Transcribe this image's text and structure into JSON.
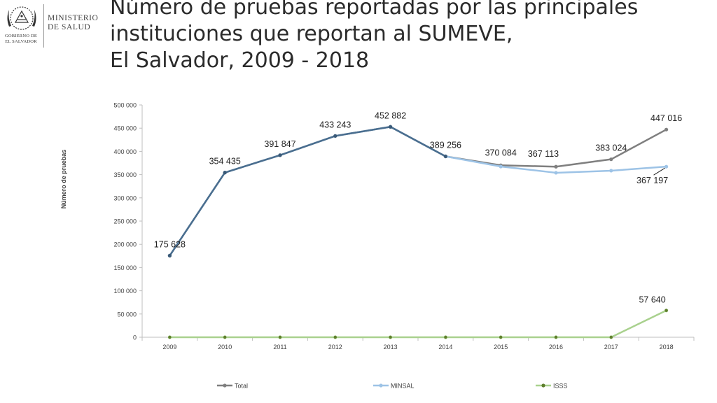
{
  "logo": {
    "ministry_line1": "MINISTERIO",
    "ministry_line2": "DE SALUD",
    "government_line1": "GOBIERNO DE",
    "government_line2": "EL SALVADOR",
    "seal_icon": "el-salvador-coat-of-arms-icon"
  },
  "title": {
    "line1": "Número de pruebas reportadas por las principales",
    "line2": "instituciones que reportan al SUMEVE,",
    "line3": "El Salvador, 2009 - 2018"
  },
  "chart_data": {
    "type": "line",
    "title": "",
    "xlabel": "",
    "ylabel": "Número de pruebas",
    "ylim": [
      0,
      500000
    ],
    "ytick_step": 50000,
    "yticks": [
      "0",
      "50 000",
      "100 000",
      "150 000",
      "200 000",
      "250 000",
      "300 000",
      "350 000",
      "400 000",
      "450 000",
      "500 000"
    ],
    "grid": false,
    "legend_position": "bottom",
    "categories": [
      "2009",
      "2010",
      "2011",
      "2012",
      "2013",
      "2014",
      "2015",
      "2016",
      "2017",
      "2018"
    ],
    "series": [
      {
        "name": "Total",
        "color": "#7f7f7f",
        "values": [
          175628,
          354435,
          391847,
          433243,
          452882,
          389256,
          370084,
          367113,
          383024,
          447016
        ]
      },
      {
        "name": "MINSAL",
        "color": "#9dc3e6",
        "values": [
          175628,
          354435,
          391847,
          433243,
          452882,
          389256,
          367500,
          354000,
          358500,
          367197
        ]
      },
      {
        "name": "ISSS",
        "color": "#a9d18e",
        "values": [
          0,
          0,
          0,
          0,
          0,
          0,
          0,
          0,
          0,
          57640
        ]
      }
    ],
    "data_labels": [
      {
        "text": "175 628",
        "category": "2009",
        "value": 175628
      },
      {
        "text": "354 435",
        "category": "2010",
        "value": 354435
      },
      {
        "text": "391 847",
        "category": "2011",
        "value": 391847
      },
      {
        "text": "433 243",
        "category": "2012",
        "value": 433243
      },
      {
        "text": "452 882",
        "category": "2013",
        "value": 452882
      },
      {
        "text": "389 256",
        "category": "2014",
        "value": 389256
      },
      {
        "text": "370 084",
        "category": "2015",
        "value": 370084
      },
      {
        "text": "367 113",
        "category": "2016",
        "value": 367113
      },
      {
        "text": "383 024",
        "category": "2017",
        "value": 383024
      },
      {
        "text": "447 016",
        "category": "2018",
        "value": 447016
      },
      {
        "text": "367 197",
        "category": "2018",
        "value": 367197
      },
      {
        "text": "57 640",
        "category": "2018",
        "value": 57640
      }
    ]
  }
}
